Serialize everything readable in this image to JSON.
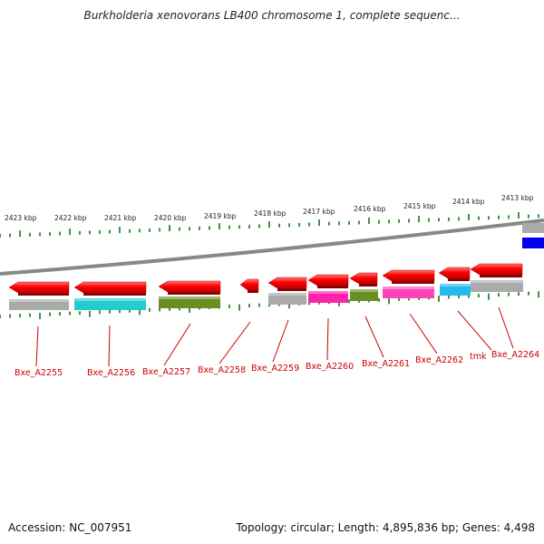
{
  "header": {
    "title": "Burkholderia xenovorans LB400 chromosome 1, complete sequenc..."
  },
  "ruler": {
    "tick_labels": [
      "2423 kbp",
      "2422 kbp",
      "2421 kbp",
      "2420 kbp",
      "2419 kbp",
      "2418 kbp",
      "2417 kbp",
      "2416 kbp",
      "2415 kbp",
      "2414 kbp",
      "2413 kbp"
    ]
  },
  "genes": [
    {
      "label": "Bxe_A2255",
      "color": "#aaaaaa"
    },
    {
      "label": "Bxe_A2256",
      "color": "#22cccc"
    },
    {
      "label": "Bxe_A2257",
      "color": "#6b8e23"
    },
    {
      "label": "Bxe_A2258",
      "color": ""
    },
    {
      "label": "Bxe_A2259",
      "color": "#aaaaaa"
    },
    {
      "label": "Bxe_A2260",
      "color": "#ff22aa"
    },
    {
      "label": "Bxe_A2261",
      "color": "#6b8e23"
    },
    {
      "label": "Bxe_A2262",
      "color": "#ff44bb"
    },
    {
      "label": "tmk",
      "color": "#22bbee"
    },
    {
      "label": "Bxe_A2264",
      "color": "#aaaaaa"
    }
  ],
  "colors": {
    "arrow": "#ff0000",
    "tick": "#117711",
    "backbone": "#888888",
    "label": "#cc0000",
    "blue_block": "#0000ee"
  },
  "footer": {
    "accession": "Accession: NC_007951",
    "summary": "Topology: circular; Length: 4,895,836 bp; Genes: 4,498"
  }
}
